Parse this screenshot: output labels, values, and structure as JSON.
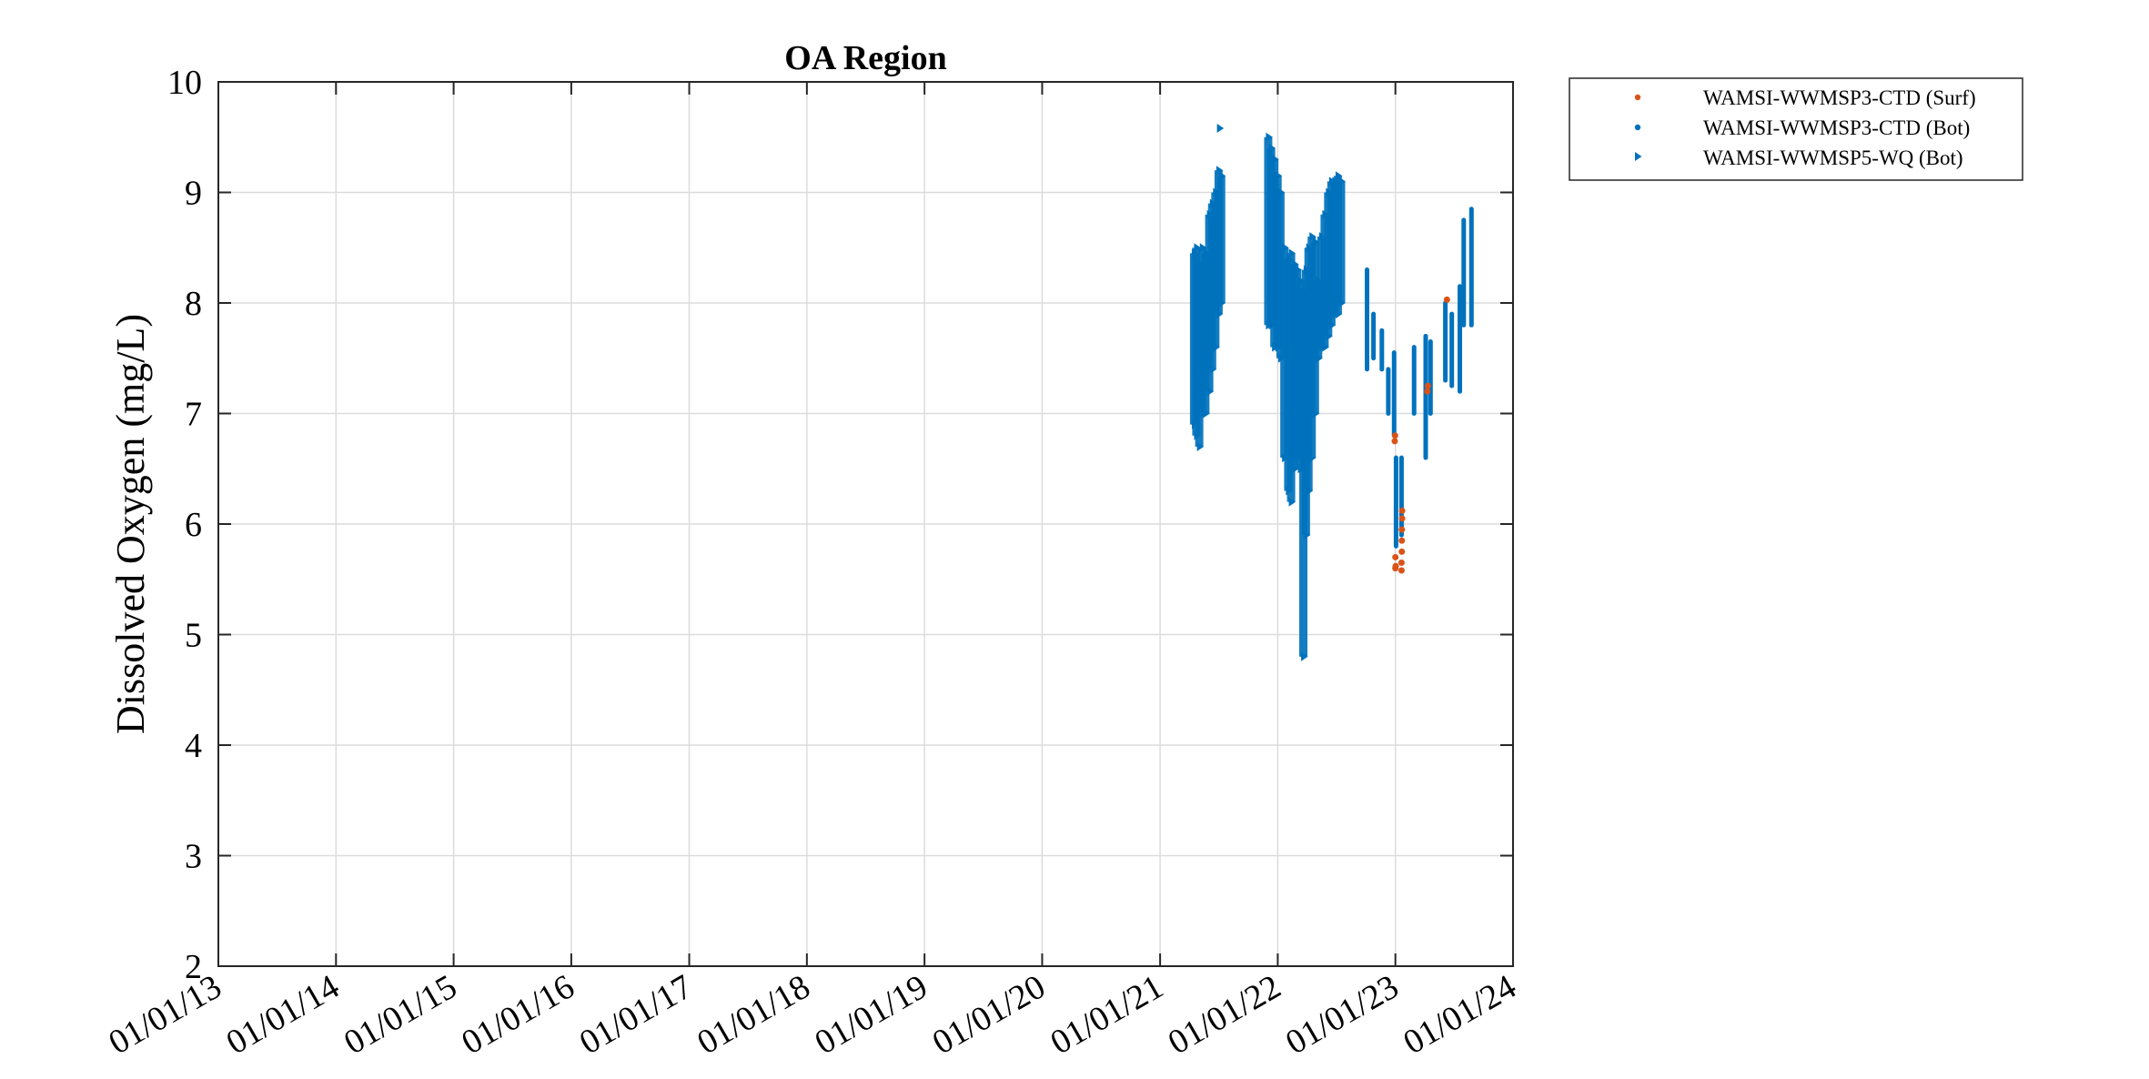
{
  "chart_data": {
    "type": "scatter",
    "title": "OA Region",
    "xlabel": "",
    "ylabel": "Dissolved Oxygen (mg/L)",
    "ylim": [
      2,
      10
    ],
    "xlim": [
      "2013-01-01",
      "2024-01-01"
    ],
    "x_ticks": [
      "2013-01-01",
      "2014-01-01",
      "2015-01-01",
      "2016-01-01",
      "2017-01-01",
      "2018-01-01",
      "2019-01-01",
      "2020-01-01",
      "2021-01-01",
      "2022-01-01",
      "2023-01-01",
      "2024-01-01"
    ],
    "x_tick_labels": [
      "01/01/13",
      "01/01/14",
      "01/01/15",
      "01/01/16",
      "01/01/17",
      "01/01/18",
      "01/01/19",
      "01/01/20",
      "01/01/21",
      "01/01/22",
      "01/01/23",
      "01/01/24"
    ],
    "y_ticks": [
      2,
      3,
      4,
      5,
      6,
      7,
      8,
      9,
      10
    ],
    "y_tick_labels": [
      "2",
      "3",
      "4",
      "5",
      "6",
      "7",
      "8",
      "9",
      "10"
    ],
    "grid": true,
    "legend_position": "outside-top-right",
    "series": [
      {
        "name": "WAMSI-WWMSP3-CTD (Surf)",
        "marker": "dot",
        "color": "#D95319",
        "points": [
          [
            "2022-12-30",
            6.75
          ],
          [
            "2022-12-31",
            6.8
          ],
          [
            "2023-01-01",
            5.6
          ],
          [
            "2023-01-01",
            5.7
          ],
          [
            "2023-01-02",
            5.62
          ],
          [
            "2023-01-20",
            5.58
          ],
          [
            "2023-01-20",
            5.65
          ],
          [
            "2023-01-21",
            5.75
          ],
          [
            "2023-01-21",
            5.85
          ],
          [
            "2023-01-21",
            5.95
          ],
          [
            "2023-01-22",
            6.05
          ],
          [
            "2023-01-22",
            6.12
          ],
          [
            "2023-04-10",
            7.2
          ],
          [
            "2023-04-12",
            7.25
          ],
          [
            "2023-06-10",
            8.03
          ]
        ]
      },
      {
        "name": "WAMSI-WWMSP3-CTD (Bot)",
        "marker": "dot",
        "color": "#0072BD",
        "segments": [
          [
            "2022-10-05",
            7.4,
            8.3
          ],
          [
            "2022-10-25",
            7.5,
            7.9
          ],
          [
            "2022-11-20",
            7.4,
            7.75
          ],
          [
            "2022-12-10",
            7.0,
            7.4
          ],
          [
            "2022-12-28",
            6.8,
            7.55
          ],
          [
            "2023-01-03",
            5.8,
            6.6
          ],
          [
            "2023-01-20",
            5.9,
            6.6
          ],
          [
            "2023-02-28",
            7.0,
            7.6
          ],
          [
            "2023-04-05",
            6.6,
            7.7
          ],
          [
            "2023-04-20",
            7.0,
            7.65
          ],
          [
            "2023-06-05",
            7.3,
            8.0
          ],
          [
            "2023-06-25",
            7.25,
            7.9
          ],
          [
            "2023-07-20",
            7.2,
            8.15
          ],
          [
            "2023-08-01",
            7.8,
            8.75
          ],
          [
            "2023-08-25",
            7.8,
            8.85
          ]
        ]
      },
      {
        "name": "WAMSI-WWMSP5-WQ (Bot)",
        "marker": "triangle-right",
        "color": "#0072BD",
        "bands": [
          [
            "2021-04-15",
            6.9,
            8.45
          ],
          [
            "2021-04-22",
            6.8,
            8.5
          ],
          [
            "2021-05-01",
            6.7,
            8.35
          ],
          [
            "2021-05-10",
            7.0,
            8.5
          ],
          [
            "2021-05-20",
            7.0,
            8.45
          ],
          [
            "2021-06-01",
            7.2,
            8.8
          ],
          [
            "2021-06-10",
            7.4,
            8.9
          ],
          [
            "2021-06-20",
            7.6,
            9.0
          ],
          [
            "2021-06-30",
            7.9,
            9.2
          ],
          [
            "2021-07-08",
            8.0,
            9.15
          ],
          [
            "2021-12-01",
            7.8,
            9.5
          ],
          [
            "2021-12-10",
            7.8,
            9.4
          ],
          [
            "2021-12-20",
            7.6,
            9.3
          ],
          [
            "2021-12-30",
            7.6,
            9.15
          ],
          [
            "2022-01-08",
            7.5,
            9.0
          ],
          [
            "2022-01-20",
            6.6,
            8.5
          ],
          [
            "2022-02-01",
            6.3,
            8.4
          ],
          [
            "2022-02-10",
            6.2,
            8.45
          ],
          [
            "2022-02-20",
            6.5,
            8.35
          ],
          [
            "2022-03-01",
            6.6,
            8.3
          ],
          [
            "2022-03-10",
            6.5,
            8.2
          ],
          [
            "2022-03-20",
            4.8,
            8.1
          ],
          [
            "2022-03-28",
            5.9,
            8.3
          ],
          [
            "2022-04-05",
            6.3,
            8.5
          ],
          [
            "2022-04-15",
            6.6,
            8.6
          ],
          [
            "2022-04-25",
            7.0,
            8.55
          ],
          [
            "2022-05-05",
            7.5,
            8.2
          ],
          [
            "2022-05-15",
            7.6,
            8.6
          ],
          [
            "2022-05-25",
            7.6,
            8.8
          ],
          [
            "2022-06-05",
            7.7,
            9.0
          ],
          [
            "2022-06-15",
            7.8,
            9.1
          ],
          [
            "2022-06-25",
            7.9,
            9.1
          ],
          [
            "2022-07-05",
            7.9,
            9.15
          ],
          [
            "2022-07-15",
            8.0,
            9.1
          ]
        ],
        "points": [
          [
            "2021-07-05",
            9.58
          ]
        ]
      }
    ]
  }
}
